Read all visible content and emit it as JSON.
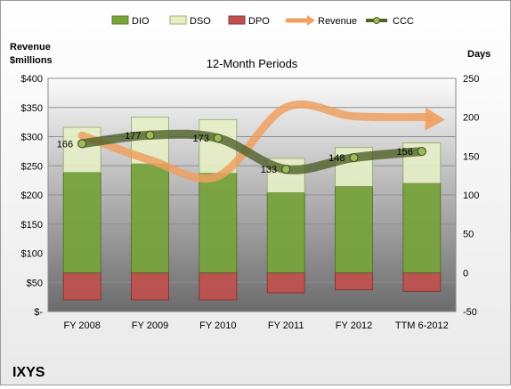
{
  "chart_data": {
    "type": "bar",
    "company": "IXYS",
    "subtitle": "12-Month Periods",
    "left_axis_title": [
      "Revenue",
      "$millions"
    ],
    "right_axis_title": "Days",
    "categories": [
      "FY 2008",
      "FY 2009",
      "FY 2010",
      "FY 2011",
      "FY 2012",
      "TTM 6-2012"
    ],
    "left_axis": {
      "min": 0,
      "max": 400,
      "step": 50,
      "tick_labels": [
        "$-",
        "$50",
        "$100",
        "$150",
        "$200",
        "$250",
        "$300",
        "$350",
        "$400"
      ]
    },
    "right_axis": {
      "min": -50,
      "max": 250,
      "step": 50,
      "tick_labels": [
        "-50",
        "0",
        "50",
        "100",
        "150",
        "200",
        "250"
      ]
    },
    "series": [
      {
        "name": "DIO",
        "kind": "bar",
        "axis": "days",
        "color": "#77a33b",
        "values": [
          129,
          140,
          128,
          103,
          111,
          115
        ]
      },
      {
        "name": "DSO",
        "kind": "bar",
        "axis": "days",
        "color": "#e6efc6",
        "values": [
          58,
          60,
          69,
          44,
          50,
          52
        ]
      },
      {
        "name": "DPO",
        "kind": "bar",
        "axis": "days",
        "color": "#c0504d",
        "values": [
          -35,
          -35,
          -35,
          -26,
          -22,
          -24
        ]
      },
      {
        "name": "Revenue",
        "kind": "line",
        "axis": "revenue",
        "color": "#f0a060",
        "values": [
          302,
          260,
          232,
          350,
          335,
          335
        ]
      },
      {
        "name": "CCC",
        "kind": "line",
        "axis": "days",
        "color": "#4f6228",
        "values": [
          166,
          177,
          173,
          133,
          148,
          156
        ]
      }
    ],
    "ccc_labels": [
      "166",
      "177",
      "173",
      "133",
      "148",
      "156"
    ],
    "legend": {
      "position": "top",
      "entries": [
        "DIO",
        "DSO",
        "DPO",
        "Revenue",
        "CCC"
      ]
    },
    "grid": true
  }
}
